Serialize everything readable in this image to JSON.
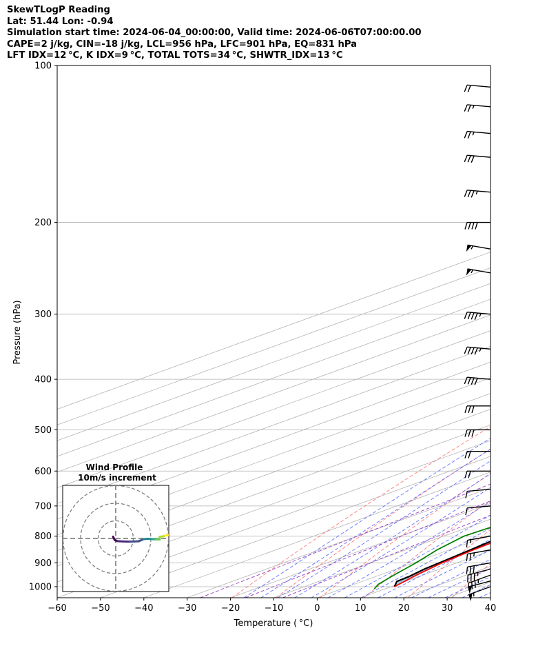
{
  "header": {
    "line1": "SkewTLogP Reading",
    "line2": "Lat: 51.44   Lon: -0.94",
    "line3": "Simulation start time: 2024-06-04_00:00:00, Valid time: 2024-06-06T07:00:00.00",
    "line4": "CAPE=2 j/kg, CIN=-18 j/kg, LCL=956 hPa, LFC=901 hPa, EQ=831 hPa",
    "line5": "LFT IDX=12 °C, K IDX=9 °C, TOTAL TOTS=34 °C, SHWTR_IDX=13 °C"
  },
  "chart_data": {
    "type": "line",
    "title": "SkewTLogP Reading",
    "xlabel": "Temperature ( °C)",
    "ylabel": "Pressure (hPa)",
    "xlim": [
      -60,
      40
    ],
    "ylim": [
      1050,
      100
    ],
    "y_scale": "log",
    "x_ticks": [
      -60,
      -50,
      -40,
      -30,
      -20,
      -10,
      0,
      10,
      20,
      30,
      40
    ],
    "x_tick_labels": [
      "−60",
      "−50",
      "−40",
      "−30",
      "−20",
      "−10",
      "0",
      "10",
      "20",
      "30",
      "40"
    ],
    "y_ticks": [
      1000,
      900,
      800,
      700,
      600,
      500,
      400,
      300,
      200,
      100
    ],
    "grid": true,
    "colors": {
      "temperature": "#ff0000",
      "dewpoint": "#008000",
      "parcel": "#000000",
      "cape_fill": "#a3c7df",
      "dry_adiabat": "#ff6666",
      "moist_adiabat": "#5566ff",
      "mixing_ratio": "#a050c8",
      "isotherm": "#b4b4b4"
    },
    "series": [
      {
        "role": "temperature",
        "points": [
          [
            10.8,
            1000
          ],
          [
            8.5,
            950
          ],
          [
            6.6,
            900
          ],
          [
            5.6,
            850
          ],
          [
            5.0,
            800
          ],
          [
            5.0,
            750
          ],
          [
            4.6,
            700
          ],
          [
            3.6,
            650
          ],
          [
            2.0,
            600
          ],
          [
            -0.8,
            550
          ],
          [
            -3.8,
            500
          ],
          [
            -7.8,
            450
          ],
          [
            -12.6,
            400
          ],
          [
            -17.5,
            350
          ],
          [
            -24.0,
            300
          ],
          [
            -31.5,
            270
          ],
          [
            -35.5,
            250
          ],
          [
            -39.2,
            230
          ],
          [
            -44.0,
            200
          ],
          [
            -51.0,
            180
          ],
          [
            -55.5,
            160
          ],
          [
            -61.5,
            140
          ],
          [
            -68.0,
            120
          ],
          [
            -73.0,
            110
          ],
          [
            -76.5,
            100
          ]
        ]
      },
      {
        "role": "dewpoint",
        "points": [
          [
            7.6,
            1010
          ],
          [
            5.6,
            990
          ],
          [
            3.3,
            950
          ],
          [
            0.6,
            900
          ],
          [
            -2.8,
            850
          ],
          [
            -5.3,
            800
          ],
          [
            -4.4,
            750
          ],
          [
            -2.4,
            700
          ],
          [
            -2.0,
            650
          ],
          [
            -6.5,
            600
          ],
          [
            -16.5,
            550
          ],
          [
            -28.2,
            500
          ],
          [
            -31.5,
            450
          ],
          [
            -27.2,
            400
          ],
          [
            -28.5,
            350
          ],
          [
            -33.0,
            300
          ],
          [
            -40.0,
            270
          ],
          [
            -43.0,
            250
          ],
          [
            -46.5,
            230
          ],
          [
            -50.5,
            210
          ],
          [
            -54.5,
            200
          ],
          [
            -61.0,
            185
          ],
          [
            -67.0,
            175
          ],
          [
            -70.0,
            165
          ],
          [
            -78.0,
            140
          ],
          [
            -89.0,
            115
          ],
          [
            -92.0,
            100
          ]
        ]
      },
      {
        "role": "parcel",
        "points": [
          [
            10.8,
            1000
          ],
          [
            8.0,
            977
          ],
          [
            7.7,
            956
          ],
          [
            6.5,
            925
          ],
          [
            4.9,
            850
          ],
          [
            2.4,
            750
          ],
          [
            -0.8,
            650
          ],
          [
            -5.0,
            550
          ],
          [
            -10.0,
            450
          ],
          [
            -17.0,
            350
          ],
          [
            -27.0,
            250
          ],
          [
            -36.5,
            200
          ],
          [
            -48.0,
            160
          ],
          [
            -60.0,
            130
          ],
          [
            -72.0,
            110
          ],
          [
            -80.0,
            100
          ]
        ]
      }
    ],
    "cape_shading": {
      "between": [
        "temperature",
        "parcel"
      ],
      "from_hpa": 1000,
      "to_hpa": 100
    },
    "wind_barbs": [
      {
        "p": 1000,
        "dir": 250,
        "spd": 55
      },
      {
        "p": 975,
        "dir": 255,
        "spd": 50
      },
      {
        "p": 950,
        "dir": 250,
        "spd": 35
      },
      {
        "p": 925,
        "dir": 255,
        "spd": 35
      },
      {
        "p": 900,
        "dir": 260,
        "spd": 30
      },
      {
        "p": 850,
        "dir": 260,
        "spd": 25
      },
      {
        "p": 800,
        "dir": 260,
        "spd": 15
      },
      {
        "p": 700,
        "dir": 265,
        "spd": 10
      },
      {
        "p": 650,
        "dir": 265,
        "spd": 10
      },
      {
        "p": 600,
        "dir": 270,
        "spd": 20
      },
      {
        "p": 550,
        "dir": 270,
        "spd": 20
      },
      {
        "p": 500,
        "dir": 270,
        "spd": 30
      },
      {
        "p": 450,
        "dir": 270,
        "spd": 30
      },
      {
        "p": 400,
        "dir": 275,
        "spd": 40
      },
      {
        "p": 350,
        "dir": 275,
        "spd": 45
      },
      {
        "p": 300,
        "dir": 275,
        "spd": 45
      },
      {
        "p": 250,
        "dir": 280,
        "spd": 55
      },
      {
        "p": 225,
        "dir": 280,
        "spd": 55
      },
      {
        "p": 200,
        "dir": 270,
        "spd": 40
      },
      {
        "p": 175,
        "dir": 275,
        "spd": 35
      },
      {
        "p": 150,
        "dir": 275,
        "spd": 30
      },
      {
        "p": 135,
        "dir": 275,
        "spd": 25
      },
      {
        "p": 120,
        "dir": 275,
        "spd": 25
      },
      {
        "p": 110,
        "dir": 275,
        "spd": 20
      }
    ],
    "hodograph": {
      "title": "Wind Profile",
      "subtitle": "10m/s increment",
      "rings_ms": [
        10,
        20,
        30
      ],
      "uv_ms": [
        [
          -1.5,
          1.0
        ],
        [
          -0.5,
          -1.0
        ],
        [
          1,
          -1.5
        ],
        [
          4,
          -1.7
        ],
        [
          8,
          -1.8
        ],
        [
          13,
          -1.6
        ],
        [
          15,
          -0.8
        ],
        [
          16,
          -0.4
        ],
        [
          18,
          -0.2
        ],
        [
          20,
          -0.3
        ],
        [
          21,
          -0.4
        ],
        [
          22,
          -0.5
        ],
        [
          23,
          -0.6
        ],
        [
          25,
          -0.6
        ],
        [
          25,
          1.0
        ],
        [
          27,
          1.2
        ],
        [
          28,
          1.5
        ],
        [
          30,
          2.0
        ]
      ]
    }
  }
}
